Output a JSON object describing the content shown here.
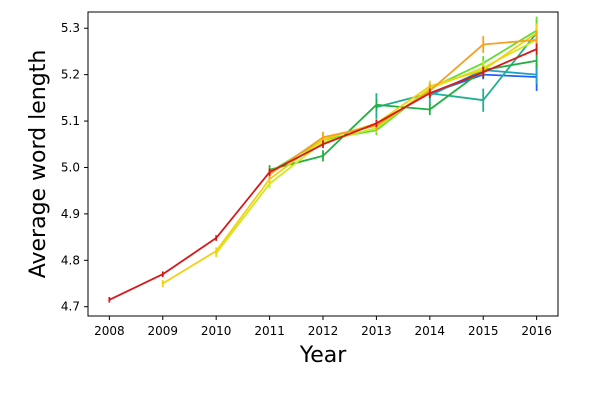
{
  "chart_data": {
    "type": "line",
    "xlabel": "Year",
    "ylabel": "Average word length",
    "xlim": [
      2007.6,
      2016.4
    ],
    "ylim": [
      4.68,
      5.335
    ],
    "x_ticks": [
      2008,
      2009,
      2010,
      2011,
      2012,
      2013,
      2014,
      2015,
      2016
    ],
    "y_ticks": [
      4.7,
      4.8,
      4.9,
      5.0,
      5.1,
      5.2,
      5.3
    ],
    "y_tick_labels": [
      "4.7",
      "4.8",
      "4.9",
      "5.0",
      "5.1",
      "5.2",
      "5.3"
    ],
    "grid": false,
    "legend": false,
    "series": [
      {
        "color": "#1f60ff",
        "x": [
          2014,
          2015,
          2016
        ],
        "values": [
          5.16,
          5.2,
          5.195
        ],
        "err": [
          0.005,
          0.01,
          0.03
        ]
      },
      {
        "color": "#1fa0c8",
        "x": [
          2014,
          2015,
          2016
        ],
        "values": [
          5.155,
          5.21,
          5.2
        ],
        "err": [
          0.008,
          0.01,
          0.02
        ]
      },
      {
        "color": "#20b090",
        "x": [
          2013,
          2014,
          2015,
          2016
        ],
        "values": [
          5.13,
          5.16,
          5.145,
          5.29
        ],
        "err": [
          0.03,
          0.025,
          0.025,
          0.03
        ]
      },
      {
        "color": "#20b040",
        "x": [
          2011,
          2012,
          2013,
          2014,
          2015,
          2016
        ],
        "values": [
          4.995,
          5.025,
          5.135,
          5.125,
          5.21,
          5.23
        ],
        "err": [
          0.01,
          0.012,
          0.012,
          0.012,
          0.015,
          0.015
        ]
      },
      {
        "color": "#60e030",
        "x": [
          2011,
          2012,
          2013,
          2014,
          2015,
          2016
        ],
        "values": [
          4.99,
          5.06,
          5.08,
          5.17,
          5.225,
          5.295
        ],
        "err": [
          0.01,
          0.01,
          0.01,
          0.01,
          0.015,
          0.03
        ]
      },
      {
        "color": "#ccea20",
        "x": [
          2010,
          2011,
          2012,
          2013,
          2014,
          2015,
          2016
        ],
        "values": [
          4.815,
          4.965,
          5.055,
          5.085,
          5.17,
          5.215,
          5.275
        ],
        "err": [
          0.008,
          0.01,
          0.01,
          0.01,
          0.012,
          0.015,
          0.02
        ]
      },
      {
        "color": "#f5d010",
        "x": [
          2009,
          2010,
          2011,
          2012,
          2013,
          2014,
          2015,
          2016
        ],
        "values": [
          4.75,
          4.82,
          4.975,
          5.06,
          5.095,
          5.175,
          5.21,
          5.29
        ],
        "err": [
          0.008,
          0.008,
          0.01,
          0.01,
          0.01,
          0.012,
          0.015,
          0.02
        ]
      },
      {
        "color": "#f8a020",
        "x": [
          2011,
          2012,
          2013,
          2014,
          2015,
          2016
        ],
        "values": [
          4.985,
          5.065,
          5.09,
          5.165,
          5.265,
          5.275
        ],
        "err": [
          0.01,
          0.012,
          0.012,
          0.015,
          0.018,
          0.02
        ]
      },
      {
        "color": "#d81818",
        "x": [
          2008,
          2009,
          2010,
          2011,
          2012,
          2013,
          2014,
          2015,
          2016
        ],
        "values": [
          4.715,
          4.77,
          4.848,
          4.99,
          5.05,
          5.095,
          5.16,
          5.205,
          5.255
        ],
        "err": [
          0.006,
          0.006,
          0.006,
          0.008,
          0.008,
          0.008,
          0.01,
          0.012,
          0.012
        ]
      }
    ]
  }
}
